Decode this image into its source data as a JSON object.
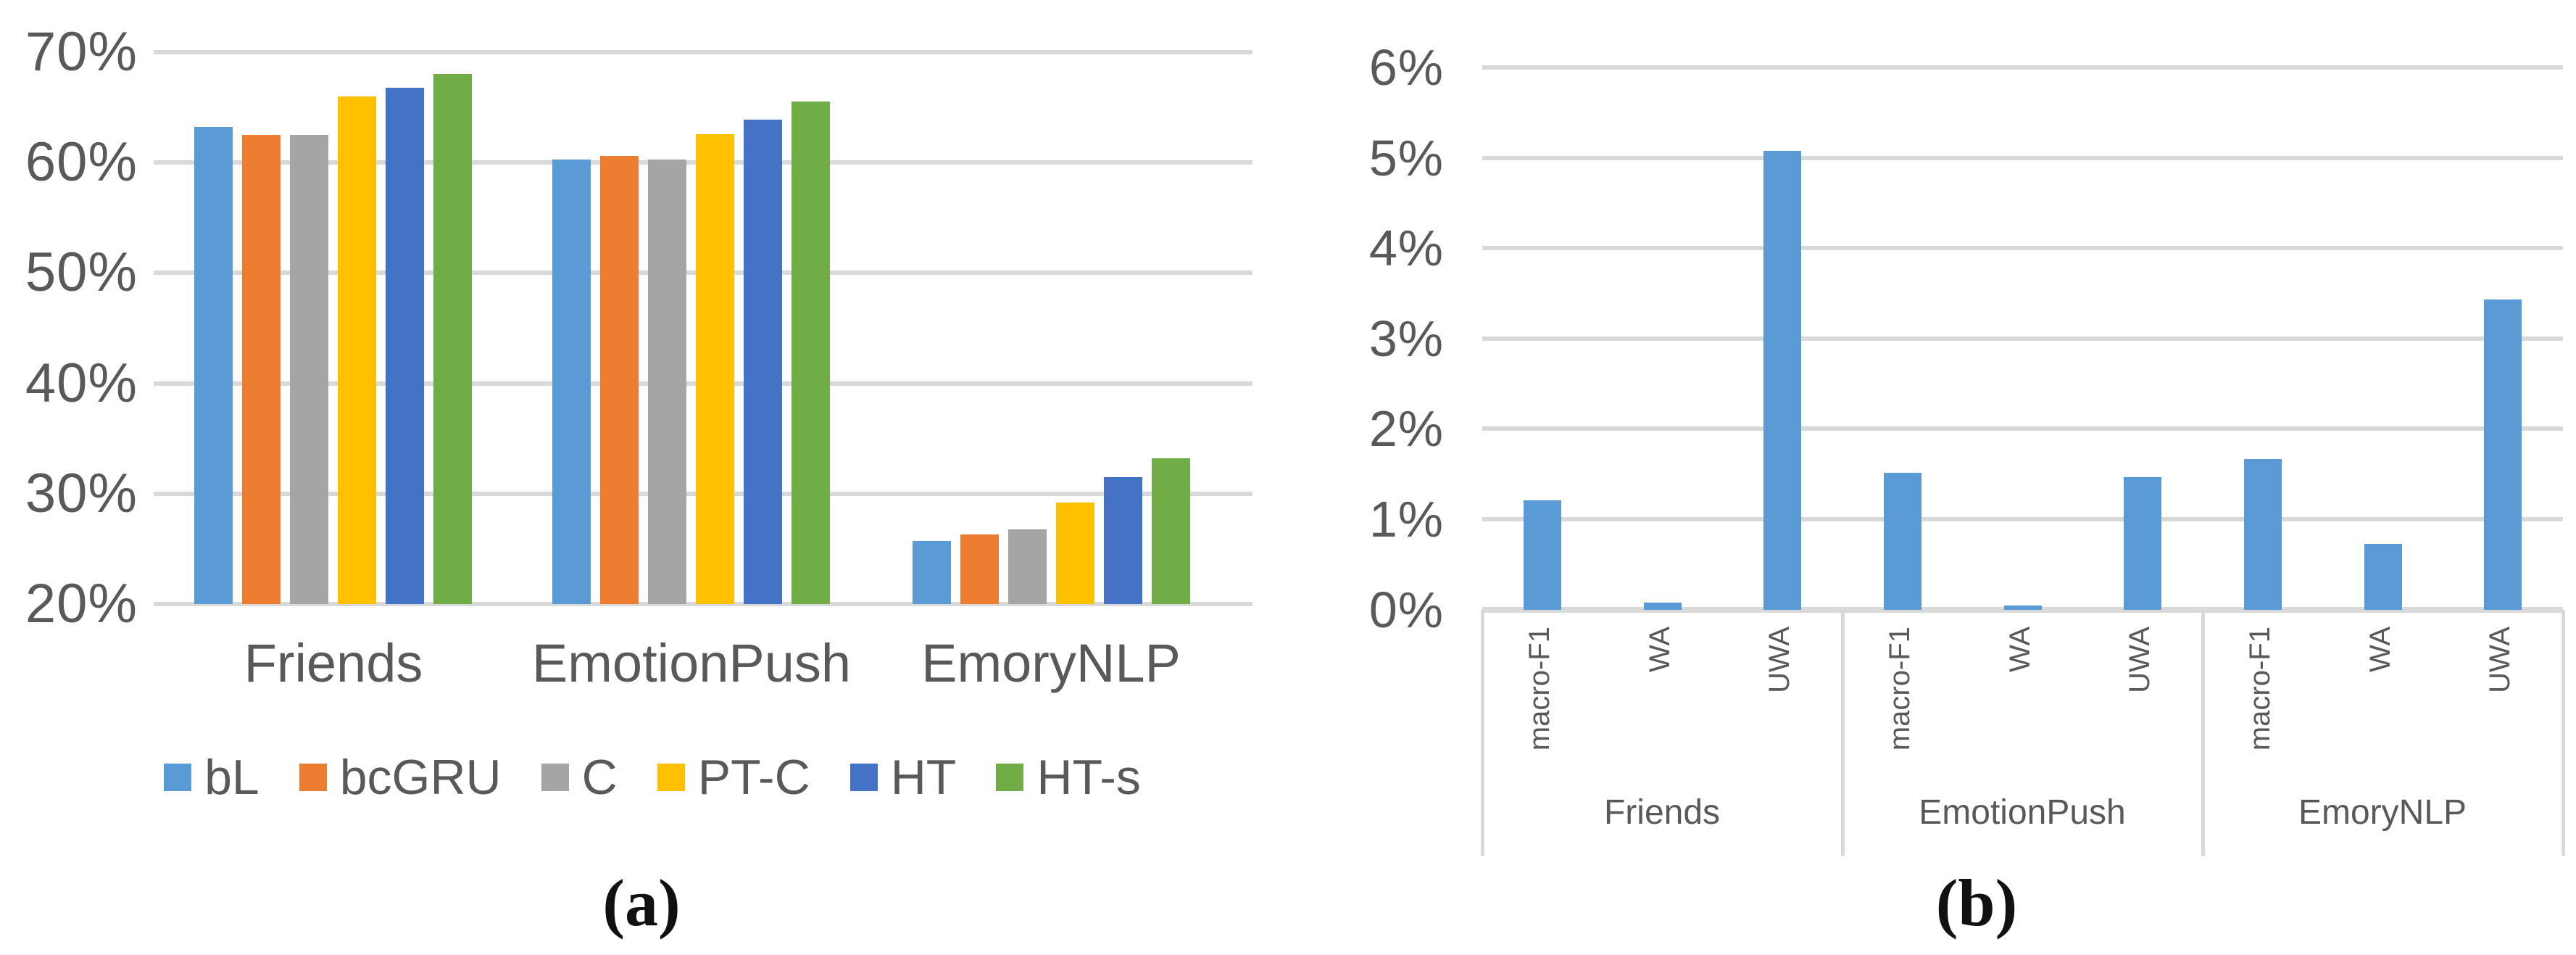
{
  "figure": {
    "caption_a": "(a)",
    "caption_b": "(b)",
    "text_color": "#595959",
    "gridline_color": "#D9D9D9",
    "background": "#ffffff"
  },
  "chart_data": [
    {
      "type": "bar",
      "panel": "a",
      "title": "",
      "categories": [
        "Friends",
        "EmotionPush",
        "EmoryNLP"
      ],
      "series": [
        {
          "name": "bL",
          "color": "#5B9BD5",
          "values": [
            63.2,
            60.3,
            25.7
          ]
        },
        {
          "name": "bcGRU",
          "color": "#ED7D31",
          "values": [
            62.5,
            60.6,
            26.3
          ]
        },
        {
          "name": "C",
          "color": "#A5A5A5",
          "values": [
            62.5,
            60.3,
            26.8
          ]
        },
        {
          "name": "PT-C",
          "color": "#FFC000",
          "values": [
            66.0,
            62.6,
            29.2
          ]
        },
        {
          "name": "HT",
          "color": "#4472C4",
          "values": [
            66.8,
            63.9,
            31.5
          ]
        },
        {
          "name": "HT-s",
          "color": "#70AD47",
          "values": [
            68.0,
            65.5,
            33.2
          ]
        }
      ],
      "ylim": [
        20,
        70
      ],
      "yticks": [
        "70%",
        "60%",
        "50%",
        "40%",
        "30%",
        "20%"
      ],
      "ylabel": "",
      "xlabel": "",
      "grid": true,
      "legend_position": "bottom"
    },
    {
      "type": "bar",
      "panel": "b",
      "title": "",
      "groups": [
        "Friends",
        "EmotionPush",
        "EmoryNLP"
      ],
      "metrics": [
        "macro-F1",
        "WA",
        "UWA"
      ],
      "bar_color": "#5B9BD5",
      "values": [
        [
          1.21,
          0.08,
          5.08
        ],
        [
          1.52,
          0.05,
          1.47
        ],
        [
          1.67,
          0.73,
          3.43
        ]
      ],
      "ylim": [
        0,
        6
      ],
      "yticks": [
        "6%",
        "5%",
        "4%",
        "3%",
        "2%",
        "1%",
        "0%"
      ],
      "ylabel": "",
      "xlabel": "",
      "grid": true,
      "legend_position": "none"
    }
  ]
}
